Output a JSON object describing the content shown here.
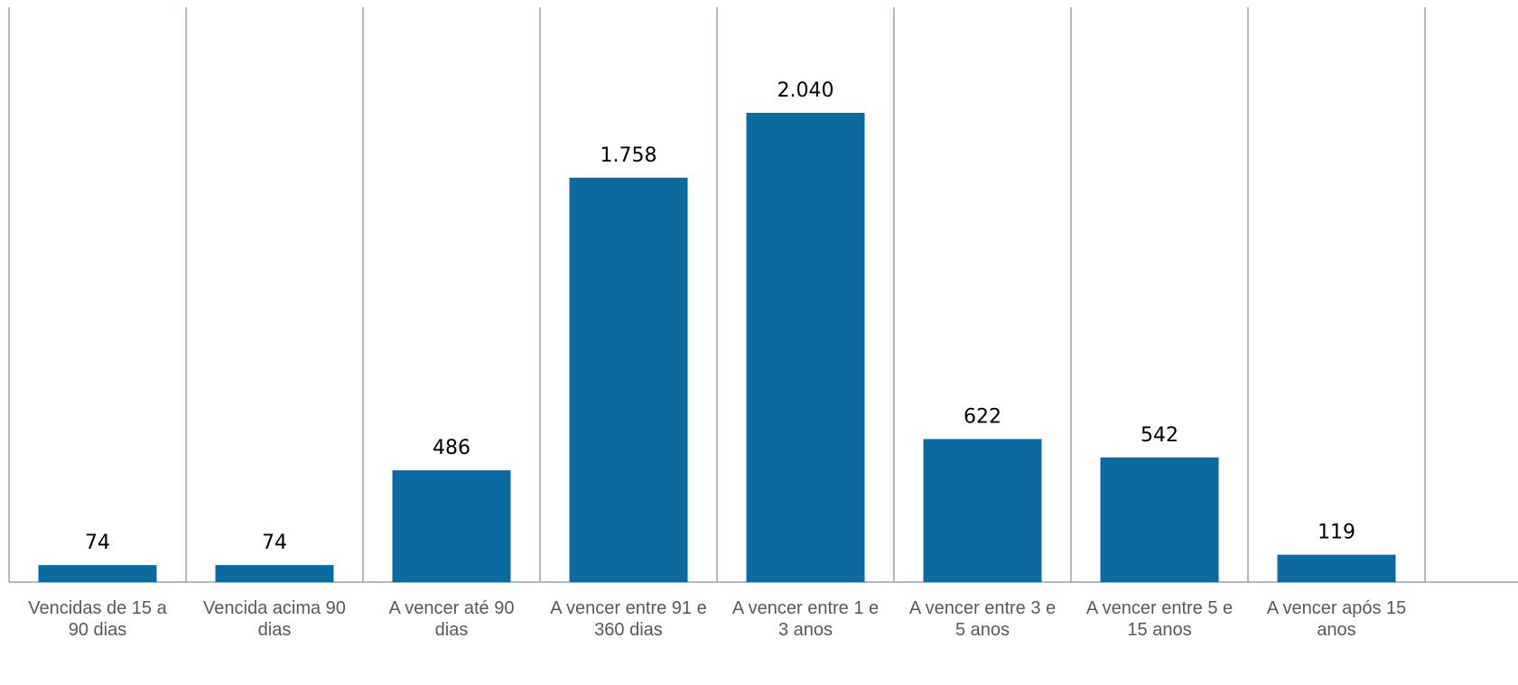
{
  "chart_data": {
    "type": "bar",
    "categories": [
      [
        "Vencidas de 15 a",
        "90 dias"
      ],
      [
        "Vencida acima 90",
        "dias"
      ],
      [
        "A vencer até 90",
        "dias"
      ],
      [
        "A vencer entre 91 e",
        "360 dias"
      ],
      [
        "A vencer entre 1 e",
        "3 anos"
      ],
      [
        "A vencer entre 3 e",
        "5 anos"
      ],
      [
        "A vencer entre 5 e",
        "15 anos"
      ],
      [
        "A vencer após 15",
        "anos"
      ]
    ],
    "values": [
      74,
      74,
      486,
      1758,
      2040,
      622,
      542,
      119
    ],
    "labels": [
      "74",
      "74",
      "486",
      "1.758",
      "2.040",
      "622",
      "542",
      "119"
    ],
    "title": "",
    "xlabel": "",
    "ylabel": "",
    "ylim": [
      0,
      2500
    ],
    "grid": "vertical separators between categories",
    "legend": "none",
    "bar_color": "#0d6aa1"
  }
}
